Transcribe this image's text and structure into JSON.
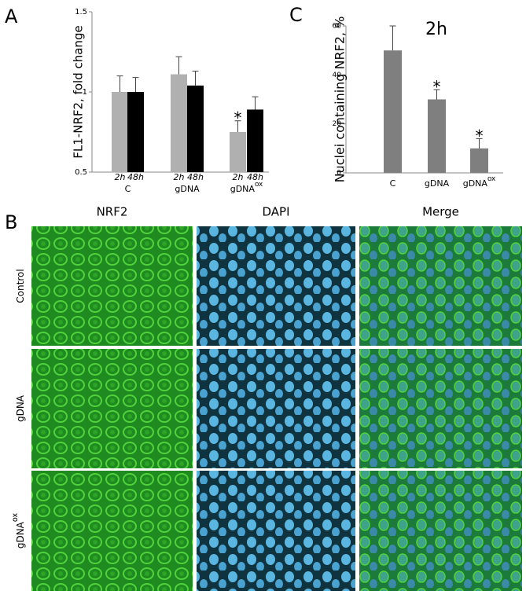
{
  "panel_labels": [
    "A",
    "B",
    "C"
  ],
  "chart_data": [
    {
      "type": "bar",
      "ylabel": "FL1-NRF2, fold change",
      "categories": [
        "C",
        "gDNA",
        "gDNA"
      ],
      "category_sups": [
        null,
        null,
        "ox"
      ],
      "series": [
        {
          "name": "2h",
          "color": "#b0b0b0",
          "values": [
            1.0,
            1.11,
            0.75
          ],
          "errors": [
            0.1,
            0.11,
            0.07
          ],
          "significance": [
            null,
            null,
            "*"
          ]
        },
        {
          "name": "48h",
          "color": "#000000",
          "values": [
            1.0,
            1.04,
            0.89
          ],
          "errors": [
            0.09,
            0.09,
            0.08
          ],
          "significance": [
            null,
            null,
            null
          ]
        }
      ],
      "ylim": [
        0.5,
        1.5
      ],
      "yticks": [
        0.5,
        1,
        1.5
      ]
    },
    {
      "type": "bar",
      "title": "2h",
      "ylabel": "Nuclei containing NRF2, %",
      "categories": [
        "C",
        "gDNA",
        "gDNA"
      ],
      "category_sups": [
        null,
        null,
        "ox"
      ],
      "series": [
        {
          "color": "#7f7f7f",
          "values": [
            50,
            30,
            10
          ],
          "errors": [
            10,
            4,
            4
          ],
          "significance": [
            null,
            "*",
            "*"
          ]
        }
      ],
      "ylim": [
        0,
        60
      ],
      "yticks": [
        0,
        20,
        40,
        60
      ]
    }
  ],
  "panel_b": {
    "columns": [
      "NRF2",
      "DAPI",
      "Merge"
    ],
    "rows": [
      "Control",
      "gDNA",
      "gDNA"
    ],
    "row_sups": [
      null,
      null,
      "ox"
    ]
  }
}
